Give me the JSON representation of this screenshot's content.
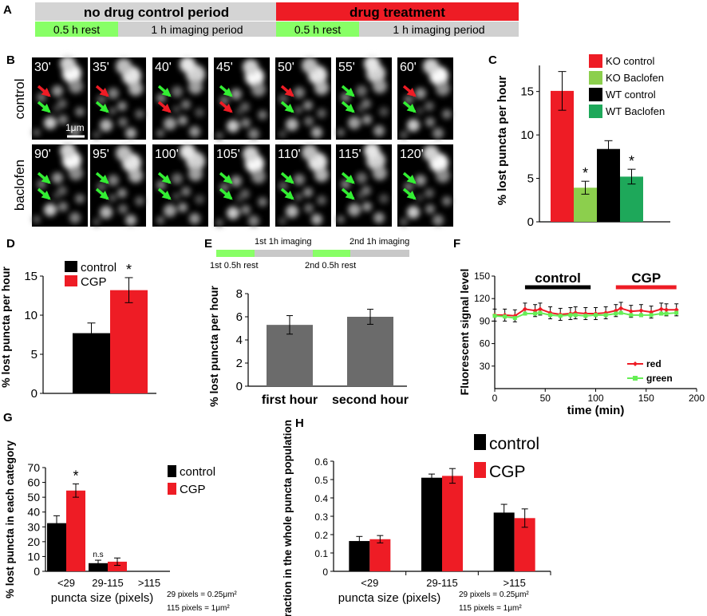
{
  "colors": {
    "red": "#ee1c25",
    "black": "#000000",
    "light_green": "#8ccf4d",
    "green": "#1ea85a",
    "bright_green": "#66ee55",
    "gray": "#6b6b6b",
    "light_gray": "#bbbbbb",
    "panel_red": "#ee1c25",
    "timeline_rest": "#88ff66",
    "timeline_gray": "#c8c8c8"
  },
  "panel_letters": {
    "a": "A",
    "b": "B",
    "c": "C",
    "d": "D",
    "e": "E",
    "f": "F",
    "g": "G",
    "h": "H"
  },
  "timeline": {
    "no_drug": "no drug control period",
    "drug": "drug treatment",
    "rest1": "0.5 h rest",
    "imaging1": "1 h imaging period",
    "rest2": "0.5 h rest",
    "imaging2": "1 h imaging period"
  },
  "images": {
    "control_label": "control",
    "baclofen_label": "baclofen",
    "scale_label": "1μm",
    "control_times": [
      "30'",
      "35'",
      "40'",
      "45'",
      "50'",
      "55'",
      "60'"
    ],
    "baclofen_times": [
      "90'",
      "95'",
      "100'",
      "105'",
      "110'",
      "115'",
      "120'"
    ],
    "control_arrows": [
      [
        "red",
        "green"
      ],
      [
        "red",
        "green"
      ],
      [
        "green",
        "red"
      ],
      [
        "green",
        "red"
      ],
      [
        "red",
        "green"
      ],
      [
        "green",
        "green"
      ],
      [
        "red",
        "green"
      ]
    ],
    "baclofen_arrows": [
      [
        "green",
        "green"
      ],
      [
        "green",
        "green"
      ],
      [
        "green",
        "green"
      ],
      [
        "green",
        "green"
      ],
      [
        "green",
        "green"
      ],
      [
        "green",
        "green"
      ],
      [
        "green",
        "green"
      ]
    ]
  },
  "chart_data": [
    {
      "id": "C",
      "type": "bar",
      "title": "",
      "ylabel": "% lost puncta per hour",
      "ylim": [
        0,
        18
      ],
      "yticks": [
        0,
        5,
        10,
        15
      ],
      "categories": [
        "KO control",
        "KO Baclofen",
        "WT control",
        "WT Baclofen"
      ],
      "values": [
        14.2,
        3.7,
        7.9,
        4.9
      ],
      "errors": [
        2.1,
        0.7,
        0.9,
        0.8
      ],
      "colors": [
        "#ee1c25",
        "#8ccf4d",
        "#000000",
        "#1ea85a"
      ],
      "significance": [
        "",
        "*",
        "",
        "*"
      ],
      "legend": [
        "KO control",
        "KO Baclofen",
        "WT control",
        "WT Baclofen"
      ]
    },
    {
      "id": "D",
      "type": "bar",
      "ylabel": "% lost puncta per hour",
      "ylim": [
        0,
        15
      ],
      "yticks": [
        0,
        5,
        10,
        15
      ],
      "categories": [
        "control",
        "CGP"
      ],
      "values": [
        7.7,
        13.2
      ],
      "errors": [
        1.3,
        1.6
      ],
      "colors": [
        "#000000",
        "#ee1c25"
      ],
      "significance": [
        "",
        "*"
      ],
      "legend": [
        "control",
        "CGP"
      ]
    },
    {
      "id": "E",
      "type": "bar",
      "ylabel": "% lost puncta per hour",
      "ylim": [
        0,
        8
      ],
      "yticks": [
        0,
        2,
        4,
        6,
        8
      ],
      "categories": [
        "first hour",
        "second hour"
      ],
      "values": [
        5.3,
        6.0
      ],
      "errors": [
        0.8,
        0.65
      ],
      "colors": [
        "#6b6b6b",
        "#6b6b6b"
      ],
      "timeline_labels": [
        "1st 1h imaging",
        "2nd 1h imaging",
        "1st 0.5h rest",
        "2nd 0.5h rest"
      ]
    },
    {
      "id": "F",
      "type": "line",
      "xlabel": "time (min)",
      "ylabel": "Fluorescent signal level",
      "xlim": [
        0,
        200
      ],
      "ylim": [
        0,
        150
      ],
      "xticks": [
        0,
        50,
        100,
        150,
        200
      ],
      "yticks": [
        30,
        60,
        90,
        120,
        150
      ],
      "x": [
        0,
        10,
        20,
        30,
        40,
        45,
        55,
        65,
        75,
        80,
        90,
        100,
        110,
        120,
        125,
        135,
        145,
        155,
        165,
        170,
        180
      ],
      "series": [
        {
          "name": "red",
          "color": "#ee1c25",
          "values": [
            98,
            98,
            97,
            106,
            104,
            106,
            101,
            99,
            100,
            101,
            100,
            100,
            101,
            104,
            107,
            103,
            104,
            102,
            106,
            105,
            105
          ]
        },
        {
          "name": "green",
          "color": "#66ee55",
          "values": [
            97,
            96,
            94,
            100,
            100,
            101,
            98,
            97,
            98,
            98,
            97,
            98,
            98,
            100,
            101,
            98,
            98,
            98,
            100,
            100,
            101
          ]
        }
      ],
      "error": 8,
      "annotations": [
        {
          "label": "control",
          "from": 30,
          "to": 95,
          "color": "#000000"
        },
        {
          "label": "CGP",
          "from": 120,
          "to": 180,
          "color": "#ee1c25"
        }
      ]
    },
    {
      "id": "G",
      "type": "bar",
      "xlabel": "puncta size (pixels)",
      "ylabel": "% lost puncta in each category",
      "ylim": [
        0,
        70
      ],
      "yticks": [
        0,
        10,
        20,
        30,
        40,
        50,
        60,
        70
      ],
      "categories": [
        "<29",
        "29-115",
        ">115"
      ],
      "series": [
        {
          "name": "control",
          "color": "#000000",
          "values": [
            32.5,
            5.5,
            0
          ],
          "errors": [
            5,
            2,
            0
          ]
        },
        {
          "name": "CGP",
          "color": "#ee1c25",
          "values": [
            54.5,
            6.5,
            0
          ],
          "errors": [
            4.5,
            2.5,
            0
          ]
        }
      ],
      "significance": [
        [
          "",
          "*"
        ],
        [
          "n.s",
          ""
        ],
        [
          "",
          ""
        ]
      ],
      "notes": [
        "29 pixels = 0.25μm²",
        "115 pixels = 1μm²"
      ]
    },
    {
      "id": "H",
      "type": "bar",
      "xlabel": "puncta size (pixels)",
      "ylabel": "fraction in the whole puncta population",
      "ylim": [
        0,
        0.6
      ],
      "yticks": [
        0,
        0.1,
        0.2,
        0.3,
        0.4,
        0.5,
        0.6
      ],
      "categories": [
        "<29",
        "29-115",
        ">115"
      ],
      "series": [
        {
          "name": "control",
          "color": "#000000",
          "values": [
            0.165,
            0.51,
            0.32
          ],
          "errors": [
            0.025,
            0.02,
            0.045
          ]
        },
        {
          "name": "CGP",
          "color": "#ee1c25",
          "values": [
            0.175,
            0.52,
            0.29
          ],
          "errors": [
            0.02,
            0.04,
            0.05
          ]
        }
      ],
      "notes": [
        "29 pixels = 0.25μm²",
        "115 pixels = 1μm²"
      ]
    }
  ]
}
